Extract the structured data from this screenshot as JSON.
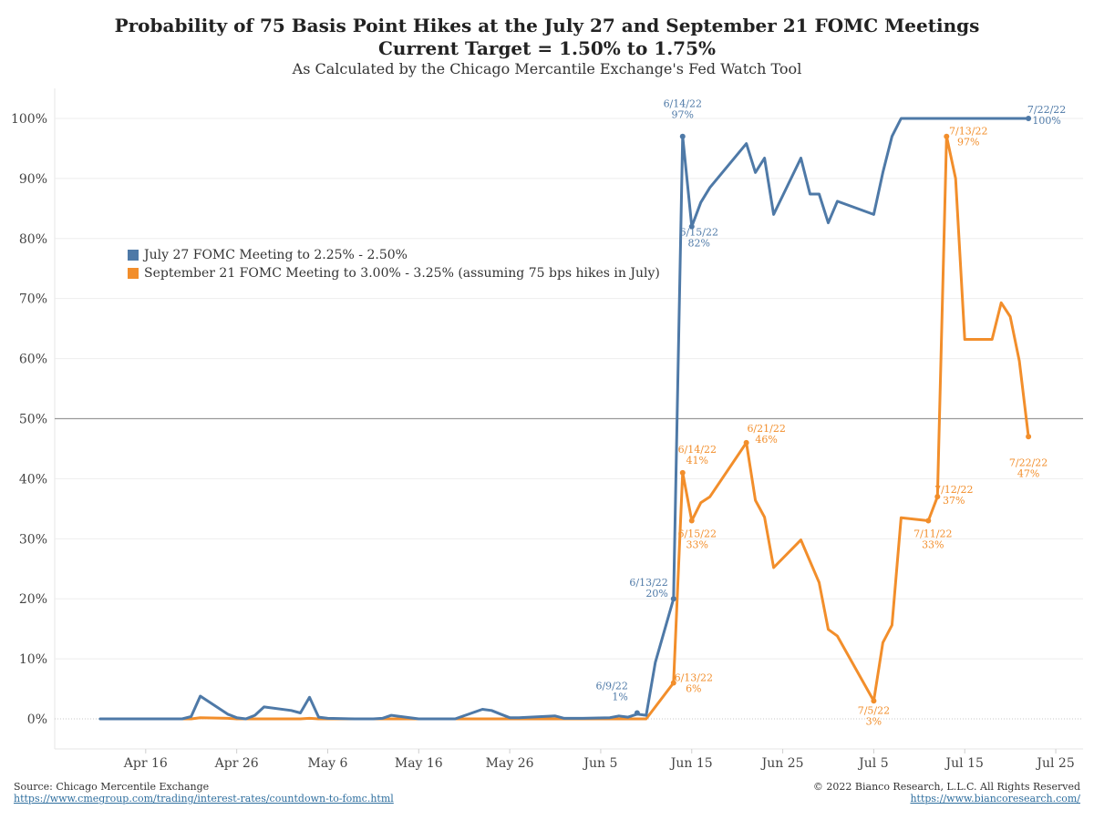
{
  "title": "Probability of 75 Basis Point Hikes at the July 27 and September 21 FOMC Meetings",
  "subtitle": "Current Target = 1.50% to 1.75%",
  "subtitle2": "As Calculated by the Chicago Mercantile Exchange's Fed Watch Tool",
  "footer": {
    "source": "Source: Chicago Mercentile Exchange",
    "source_url": "https://www.cmegroup.com/trading/interest-rates/countdown-to-fomc.html",
    "copyright": "© 2022 Bianco Research, L.L.C. All Rights Reserved",
    "site_url": "https://www.biancoresearch.com/"
  },
  "colors": {
    "july": "#4e79a7",
    "sept": "#f28e2b",
    "grid": "#eeeeee",
    "refline": "#999999"
  },
  "chart_data": {
    "type": "line",
    "x_axis": {
      "ticks": [
        "2022-04-16",
        "2022-04-26",
        "2022-05-06",
        "2022-05-16",
        "2022-05-26",
        "2022-06-05",
        "2022-06-15",
        "2022-06-25",
        "2022-07-05",
        "2022-07-15",
        "2022-07-25"
      ],
      "tick_labels": [
        "Apr 16",
        "Apr 26",
        "May 6",
        "May 16",
        "May 26",
        "Jun 5",
        "Jun 15",
        "Jun 25",
        "Jul 5",
        "Jul 15",
        "Jul 25"
      ],
      "range": [
        "2022-04-06",
        "2022-07-28"
      ]
    },
    "y_axis": {
      "ticks": [
        0,
        10,
        20,
        30,
        40,
        50,
        60,
        70,
        80,
        90,
        100
      ],
      "tick_labels": [
        "0%",
        "10%",
        "20%",
        "30%",
        "40%",
        "50%",
        "60%",
        "70%",
        "80%",
        "90%",
        "100%"
      ],
      "range": [
        -5,
        105
      ]
    },
    "reference_line": 50,
    "series": [
      {
        "name": "July 27 FOMC Meeting to 2.25% - 2.50%",
        "color": "#4e79a7",
        "points": [
          [
            "2022-04-11",
            0
          ],
          [
            "2022-04-12",
            0
          ],
          [
            "2022-04-13",
            0
          ],
          [
            "2022-04-14",
            0
          ],
          [
            "2022-04-15",
            0
          ],
          [
            "2022-04-18",
            0
          ],
          [
            "2022-04-19",
            0
          ],
          [
            "2022-04-20",
            0
          ],
          [
            "2022-04-21",
            0.4
          ],
          [
            "2022-04-22",
            3.8
          ],
          [
            "2022-04-25",
            0.8
          ],
          [
            "2022-04-26",
            0.2
          ],
          [
            "2022-04-27",
            0
          ],
          [
            "2022-04-28",
            0.6
          ],
          [
            "2022-04-29",
            2.0
          ],
          [
            "2022-05-02",
            1.4
          ],
          [
            "2022-05-03",
            1.0
          ],
          [
            "2022-05-04",
            3.6
          ],
          [
            "2022-05-05",
            0.3
          ],
          [
            "2022-05-06",
            0.1
          ],
          [
            "2022-05-09",
            0
          ],
          [
            "2022-05-10",
            0
          ],
          [
            "2022-05-11",
            0
          ],
          [
            "2022-05-12",
            0.1
          ],
          [
            "2022-05-13",
            0.6
          ],
          [
            "2022-05-16",
            0
          ],
          [
            "2022-05-17",
            0
          ],
          [
            "2022-05-18",
            0
          ],
          [
            "2022-05-19",
            0
          ],
          [
            "2022-05-20",
            0
          ],
          [
            "2022-05-23",
            1.6
          ],
          [
            "2022-05-24",
            1.4
          ],
          [
            "2022-05-25",
            0.8
          ],
          [
            "2022-05-26",
            0.2
          ],
          [
            "2022-05-27",
            0.2
          ],
          [
            "2022-05-31",
            0.5
          ],
          [
            "2022-06-01",
            0.1
          ],
          [
            "2022-06-02",
            0.1
          ],
          [
            "2022-06-03",
            0.1
          ],
          [
            "2022-06-06",
            0.2
          ],
          [
            "2022-06-07",
            0.5
          ],
          [
            "2022-06-08",
            0.3
          ],
          [
            "2022-06-09",
            0.8
          ],
          [
            "2022-06-10",
            0.6
          ],
          [
            "2022-06-11",
            9.4
          ],
          [
            "2022-06-13",
            20
          ],
          [
            "2022-06-14",
            97
          ],
          [
            "2022-06-15",
            82
          ],
          [
            "2022-06-16",
            86
          ],
          [
            "2022-06-17",
            88.5
          ],
          [
            "2022-06-21",
            95.8
          ],
          [
            "2022-06-22",
            91
          ],
          [
            "2022-06-23",
            93.4
          ],
          [
            "2022-06-24",
            84
          ],
          [
            "2022-06-27",
            93.4
          ],
          [
            "2022-06-28",
            87.4
          ],
          [
            "2022-06-29",
            87.4
          ],
          [
            "2022-06-30",
            82.6
          ],
          [
            "2022-07-01",
            86.2
          ],
          [
            "2022-07-05",
            84
          ],
          [
            "2022-07-06",
            91
          ],
          [
            "2022-07-07",
            97
          ],
          [
            "2022-07-08",
            100
          ],
          [
            "2022-07-11",
            100
          ],
          [
            "2022-07-12",
            100
          ],
          [
            "2022-07-13",
            100
          ],
          [
            "2022-07-14",
            100
          ],
          [
            "2022-07-15",
            100
          ],
          [
            "2022-07-18",
            100
          ],
          [
            "2022-07-19",
            100
          ],
          [
            "2022-07-20",
            100
          ],
          [
            "2022-07-21",
            100
          ],
          [
            "2022-07-22",
            100
          ]
        ],
        "annotations": [
          {
            "date": "2022-06-09",
            "value": 1,
            "label": "6/9/22",
            "value_label": "1%"
          },
          {
            "date": "2022-06-13",
            "value": 20,
            "label": "6/13/22",
            "value_label": "20%"
          },
          {
            "date": "2022-06-14",
            "value": 97,
            "label": "6/14/22",
            "value_label": "97%"
          },
          {
            "date": "2022-06-15",
            "value": 82,
            "label": "6/15/22",
            "value_label": "82%"
          },
          {
            "date": "2022-07-22",
            "value": 100,
            "label": "7/22/22",
            "value_label": "100%"
          }
        ]
      },
      {
        "name": "September 21 FOMC Meeting to 3.00% - 3.25% (assuming 75 bps hikes in July)",
        "color": "#f28e2b",
        "points": [
          [
            "2022-04-20",
            0
          ],
          [
            "2022-04-21",
            0
          ],
          [
            "2022-04-22",
            0.2
          ],
          [
            "2022-04-25",
            0.1
          ],
          [
            "2022-04-26",
            0
          ],
          [
            "2022-04-27",
            0
          ],
          [
            "2022-04-28",
            0
          ],
          [
            "2022-04-29",
            0
          ],
          [
            "2022-05-02",
            0
          ],
          [
            "2022-05-03",
            0
          ],
          [
            "2022-05-04",
            0.1
          ],
          [
            "2022-05-05",
            0
          ],
          [
            "2022-05-06",
            0
          ],
          [
            "2022-05-09",
            0
          ],
          [
            "2022-05-10",
            0
          ],
          [
            "2022-05-11",
            0
          ],
          [
            "2022-05-12",
            0
          ],
          [
            "2022-05-13",
            0
          ],
          [
            "2022-05-16",
            0
          ],
          [
            "2022-05-17",
            0
          ],
          [
            "2022-05-18",
            0
          ],
          [
            "2022-05-19",
            0
          ],
          [
            "2022-05-20",
            0
          ],
          [
            "2022-05-23",
            0
          ],
          [
            "2022-05-24",
            0
          ],
          [
            "2022-05-25",
            0
          ],
          [
            "2022-05-26",
            0
          ],
          [
            "2022-05-27",
            0
          ],
          [
            "2022-05-31",
            0
          ],
          [
            "2022-06-01",
            0
          ],
          [
            "2022-06-02",
            0
          ],
          [
            "2022-06-03",
            0
          ],
          [
            "2022-06-06",
            0
          ],
          [
            "2022-06-07",
            0
          ],
          [
            "2022-06-08",
            0
          ],
          [
            "2022-06-09",
            0
          ],
          [
            "2022-06-10",
            0
          ],
          [
            "2022-06-13",
            6
          ],
          [
            "2022-06-14",
            41
          ],
          [
            "2022-06-15",
            33
          ],
          [
            "2022-06-16",
            36
          ],
          [
            "2022-06-17",
            37
          ],
          [
            "2022-06-21",
            46
          ],
          [
            "2022-06-22",
            36.4
          ],
          [
            "2022-06-23",
            33.6
          ],
          [
            "2022-06-24",
            25.2
          ],
          [
            "2022-06-27",
            29.8
          ],
          [
            "2022-06-29",
            22.7
          ],
          [
            "2022-06-30",
            14.9
          ],
          [
            "2022-07-01",
            13.8
          ],
          [
            "2022-07-05",
            3
          ],
          [
            "2022-07-06",
            12.7
          ],
          [
            "2022-07-07",
            15.6
          ],
          [
            "2022-07-08",
            33.5
          ],
          [
            "2022-07-11",
            33
          ],
          [
            "2022-07-12",
            37
          ],
          [
            "2022-07-13",
            97
          ],
          [
            "2022-07-14",
            90
          ],
          [
            "2022-07-15",
            63.2
          ],
          [
            "2022-07-18",
            63.2
          ],
          [
            "2022-07-19",
            69.3
          ],
          [
            "2022-07-20",
            67
          ],
          [
            "2022-07-21",
            59.6
          ],
          [
            "2022-07-22",
            47
          ]
        ],
        "annotations": [
          {
            "date": "2022-06-13",
            "value": 6,
            "label": "6/13/22",
            "value_label": "6%"
          },
          {
            "date": "2022-06-14",
            "value": 41,
            "label": "6/14/22",
            "value_label": "41%"
          },
          {
            "date": "2022-06-15",
            "value": 33,
            "label": "6/15/22",
            "value_label": "33%"
          },
          {
            "date": "2022-06-21",
            "value": 46,
            "label": "6/21/22",
            "value_label": "46%"
          },
          {
            "date": "2022-07-05",
            "value": 3,
            "label": "7/5/22",
            "value_label": "3%"
          },
          {
            "date": "2022-07-11",
            "value": 33,
            "label": "7/11/22",
            "value_label": "33%"
          },
          {
            "date": "2022-07-12",
            "value": 37,
            "label": "7/12/22",
            "value_label": "37%"
          },
          {
            "date": "2022-07-13",
            "value": 97,
            "label": "7/13/22",
            "value_label": "97%"
          },
          {
            "date": "2022-07-22",
            "value": 47,
            "label": "7/22/22",
            "value_label": "47%"
          }
        ]
      }
    ]
  }
}
